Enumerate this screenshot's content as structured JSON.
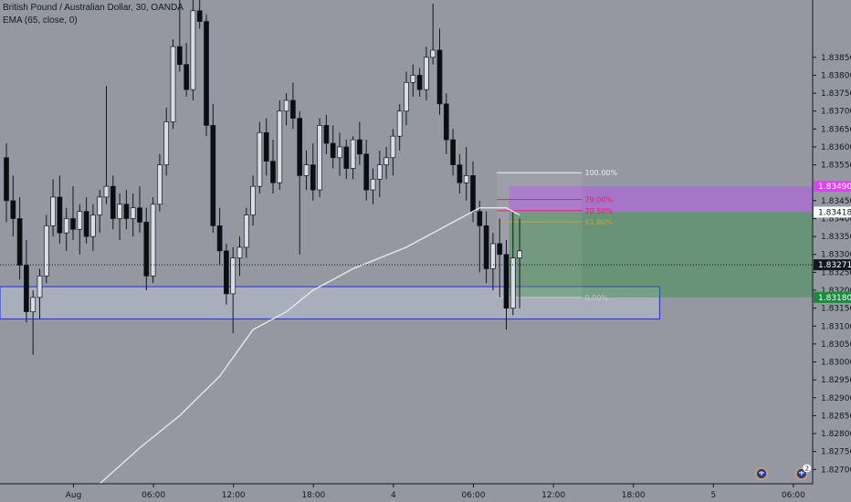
{
  "legend": {
    "symbol_line": "British Pound / Australian Dollar, 30, OANDA",
    "indicator_line": "EMA (65, close, 0)"
  },
  "chart_data": {
    "type": "candlestick",
    "title": "British Pound / Australian Dollar, 30, OANDA",
    "ylim": [
      1.8266,
      1.8401
    ],
    "price_ticks": [
      "1.83850",
      "1.83800",
      "1.83750",
      "1.83700",
      "1.83650",
      "1.83600",
      "1.83550",
      "1.83450",
      "1.83400",
      "1.83350",
      "1.83300",
      "1.83250",
      "1.83200",
      "1.83150",
      "1.83100",
      "1.83050",
      "1.83000",
      "1.82950",
      "1.82900",
      "1.82850",
      "1.82800",
      "1.82750",
      "1.82700"
    ],
    "time_ticks": [
      {
        "label": "Aug",
        "bar": 5
      },
      {
        "label": "06:00",
        "bar": 17
      },
      {
        "label": "12:00",
        "bar": 29
      },
      {
        "label": "18:00",
        "bar": 41
      },
      {
        "label": "4",
        "bar": 53
      },
      {
        "label": "06:00",
        "bar": 65
      },
      {
        "label": "12:00",
        "bar": 77
      },
      {
        "label": "18:00",
        "bar": 89
      },
      {
        "label": "5",
        "bar": 101
      },
      {
        "label": "06:00",
        "bar": 113
      }
    ],
    "series": [
      {
        "type": "candles",
        "candles": [
          [
            1.8357,
            1.8361,
            1.8339,
            1.8345
          ],
          [
            1.8345,
            1.8352,
            1.8335,
            1.834
          ],
          [
            1.834,
            1.8346,
            1.8323,
            1.8327
          ],
          [
            1.8327,
            1.8334,
            1.8311,
            1.8314
          ],
          [
            1.8314,
            1.832,
            1.8302,
            1.8318
          ],
          [
            1.8318,
            1.8326,
            1.8312,
            1.8324
          ],
          [
            1.8324,
            1.8341,
            1.8322,
            1.8338
          ],
          [
            1.8338,
            1.8351,
            1.8335,
            1.8346
          ],
          [
            1.8346,
            1.8352,
            1.8333,
            1.8336
          ],
          [
            1.8336,
            1.8343,
            1.8331,
            1.834
          ],
          [
            1.834,
            1.8349,
            1.8334,
            1.8337
          ],
          [
            1.8337,
            1.8344,
            1.833,
            1.8342
          ],
          [
            1.8342,
            1.8346,
            1.8333,
            1.8335
          ],
          [
            1.8335,
            1.8344,
            1.8331,
            1.8341
          ],
          [
            1.8341,
            1.8348,
            1.8336,
            1.8346
          ],
          [
            1.8346,
            1.8377,
            1.8344,
            1.8349
          ],
          [
            1.8349,
            1.8352,
            1.8337,
            1.834
          ],
          [
            1.834,
            1.8347,
            1.8334,
            1.8344
          ],
          [
            1.8344,
            1.8348,
            1.8337,
            1.834
          ],
          [
            1.834,
            1.8347,
            1.8335,
            1.8343
          ],
          [
            1.8343,
            1.8349,
            1.8336,
            1.8339
          ],
          [
            1.8339,
            1.8343,
            1.832,
            1.8324
          ],
          [
            1.8324,
            1.8346,
            1.8322,
            1.8344
          ],
          [
            1.8344,
            1.8358,
            1.8342,
            1.8355
          ],
          [
            1.8355,
            1.8371,
            1.8352,
            1.8367
          ],
          [
            1.8367,
            1.839,
            1.8365,
            1.8388
          ],
          [
            1.8388,
            1.8401,
            1.8381,
            1.8383
          ],
          [
            1.8383,
            1.8389,
            1.8374,
            1.8376
          ],
          [
            1.8376,
            1.8401,
            1.8373,
            1.8398
          ],
          [
            1.8398,
            1.8401,
            1.8393,
            1.8395
          ],
          [
            1.8395,
            1.8397,
            1.8363,
            1.8366
          ],
          [
            1.8366,
            1.8372,
            1.8336,
            1.8338
          ],
          [
            1.8338,
            1.8343,
            1.8327,
            1.8331
          ],
          [
            1.8331,
            1.8333,
            1.8316,
            1.8319
          ],
          [
            1.8319,
            1.8332,
            1.8308,
            1.8329
          ],
          [
            1.8329,
            1.8335,
            1.8324,
            1.8332
          ],
          [
            1.8332,
            1.8343,
            1.8329,
            1.8341
          ],
          [
            1.8341,
            1.8352,
            1.8338,
            1.8349
          ],
          [
            1.8349,
            1.8367,
            1.8347,
            1.8364
          ],
          [
            1.8364,
            1.8368,
            1.8352,
            1.8356
          ],
          [
            1.8356,
            1.8362,
            1.8347,
            1.835
          ],
          [
            1.835,
            1.8373,
            1.8348,
            1.837
          ],
          [
            1.837,
            1.8375,
            1.8366,
            1.8373
          ],
          [
            1.8373,
            1.8378,
            1.8365,
            1.8368
          ],
          [
            1.8368,
            1.837,
            1.833,
            1.8352
          ],
          [
            1.8352,
            1.8359,
            1.8348,
            1.8355
          ],
          [
            1.8355,
            1.8361,
            1.8345,
            1.8348
          ],
          [
            1.8348,
            1.8368,
            1.8346,
            1.8366
          ],
          [
            1.8366,
            1.8369,
            1.8358,
            1.8361
          ],
          [
            1.8361,
            1.8366,
            1.8354,
            1.8357
          ],
          [
            1.8357,
            1.8364,
            1.8352,
            1.836
          ],
          [
            1.836,
            1.8362,
            1.8351,
            1.8354
          ],
          [
            1.8354,
            1.8363,
            1.8351,
            1.8362
          ],
          [
            1.8362,
            1.8367,
            1.8355,
            1.8358
          ],
          [
            1.8358,
            1.8362,
            1.8345,
            1.8348
          ],
          [
            1.8348,
            1.8354,
            1.8344,
            1.8351
          ],
          [
            1.8351,
            1.8359,
            1.8346,
            1.8355
          ],
          [
            1.8355,
            1.836,
            1.8351,
            1.8357
          ],
          [
            1.8357,
            1.8365,
            1.8352,
            1.8363
          ],
          [
            1.8363,
            1.8372,
            1.8359,
            1.837
          ],
          [
            1.837,
            1.8381,
            1.8366,
            1.8378
          ],
          [
            1.8378,
            1.8383,
            1.8374,
            1.838
          ],
          [
            1.838,
            1.8382,
            1.8374,
            1.8376
          ],
          [
            1.8376,
            1.8388,
            1.8373,
            1.8385
          ],
          [
            1.8385,
            1.84,
            1.8383,
            1.8387
          ],
          [
            1.8387,
            1.8393,
            1.8369,
            1.8372
          ],
          [
            1.8372,
            1.8375,
            1.8358,
            1.8362
          ],
          [
            1.8362,
            1.8365,
            1.8352,
            1.8355
          ],
          [
            1.8355,
            1.8358,
            1.8347,
            1.835
          ],
          [
            1.835,
            1.836,
            1.8345,
            1.8352
          ],
          [
            1.8352,
            1.8356,
            1.8339,
            1.8342
          ],
          [
            1.8342,
            1.8345,
            1.8325,
            1.8338
          ],
          [
            1.8338,
            1.8342,
            1.8322,
            1.8326
          ],
          [
            1.8326,
            1.8336,
            1.832,
            1.8333
          ],
          [
            1.8333,
            1.834,
            1.8318,
            1.833
          ],
          [
            1.833,
            1.8334,
            1.8309,
            1.8315
          ],
          [
            1.8315,
            1.8342,
            1.8313,
            1.8329
          ],
          [
            1.8329,
            1.834,
            1.8315,
            1.8331
          ]
        ]
      },
      {
        "type": "line",
        "name": "EMA (65, close, 0)",
        "color": "#e8e8e8",
        "points": [
          [
            14,
            1.8266
          ],
          [
            20,
            1.8276
          ],
          [
            26,
            1.8285
          ],
          [
            32,
            1.8296
          ],
          [
            37,
            1.8309
          ],
          [
            42,
            1.8314
          ],
          [
            46,
            1.832
          ],
          [
            52,
            1.8326
          ],
          [
            60,
            1.8332
          ],
          [
            65,
            1.8337
          ],
          [
            71,
            1.8343
          ],
          [
            75,
            1.8343
          ],
          [
            77,
            1.8341
          ]
        ]
      }
    ],
    "price_labels": [
      {
        "value": "1.83490",
        "bg": "#e040fb",
        "fg": "#ffffff"
      },
      {
        "value": "1.83418",
        "bg": "#ffffff",
        "fg": "#131722"
      },
      {
        "value": "1.83271",
        "bg": "#131722",
        "fg": "#ffffff"
      },
      {
        "value": "1.83180",
        "bg": "#1b8a3d",
        "fg": "#ffffff"
      }
    ],
    "current_price": 1.83271,
    "position": {
      "entry": 1.83418,
      "stop": 1.8349,
      "target": 1.8318,
      "from_bar": 75,
      "to_bar": 132
    },
    "zone": {
      "top": 1.8321,
      "bottom": 1.8312,
      "from_bar": 0,
      "to_bar": 98
    },
    "fibonacci": {
      "from_bar": 74,
      "to_bar": 85,
      "levels": [
        {
          "label": "100.00%",
          "value": 1.83528,
          "color": "#f0f0f0"
        },
        {
          "label": "79.00%",
          "value": 1.83453,
          "color": "#e91e63"
        },
        {
          "label": "70.50%",
          "value": 1.83422,
          "color": "#e91e63"
        },
        {
          "label": "61.80%",
          "value": 1.83391,
          "color": "#c8a040"
        },
        {
          "label": "0.00%",
          "value": 1.8318,
          "color": "#c8c8c8"
        }
      ]
    },
    "events": [
      {
        "bar": 110,
        "icon": "flag-icon",
        "count": ""
      },
      {
        "bar": 116,
        "icon": "flag-icon",
        "count": "2"
      },
      {
        "bar": 126,
        "icon": "flag-icon",
        "count": ""
      }
    ]
  }
}
